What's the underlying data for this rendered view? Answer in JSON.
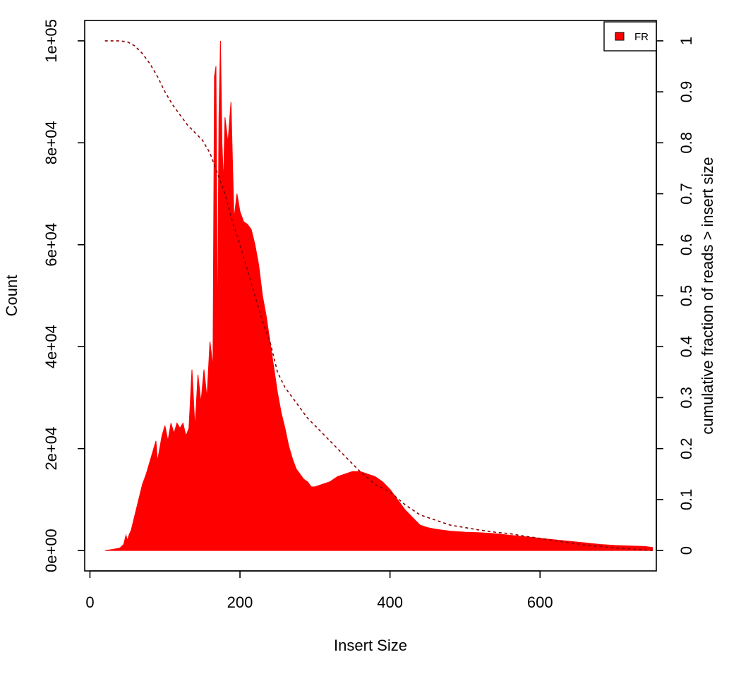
{
  "chart_data": {
    "type": "area",
    "title": "",
    "xlabel": "Insert Size",
    "ylabel": "Count",
    "y2label": "cumulative fraction of reads > insert size",
    "xlim": [
      -7,
      755
    ],
    "ylim": [
      -4000,
      104000
    ],
    "y2lim": [
      -0.04,
      1.04
    ],
    "x_ticks": [
      0,
      200,
      400,
      600
    ],
    "x_tick_labels": [
      "0",
      "200",
      "400",
      "600"
    ],
    "y_ticks": [
      0,
      20000,
      40000,
      60000,
      80000,
      100000
    ],
    "y_tick_labels": [
      "0e+00",
      "2e+04",
      "4e+04",
      "6e+04",
      "8e+04",
      "1e+05"
    ],
    "y2_ticks": [
      0,
      0.1,
      0.2,
      0.3,
      0.4,
      0.5,
      0.6,
      0.7,
      0.8,
      0.9,
      1
    ],
    "y2_tick_labels": [
      "0",
      "0.1",
      "0.2",
      "0.3",
      "0.4",
      "0.5",
      "0.6",
      "0.7",
      "0.8",
      "0.9",
      "1"
    ],
    "grid": false,
    "legend": {
      "position": "top-right",
      "entries": [
        "FR"
      ]
    },
    "colors": {
      "histogram": "#ff0000",
      "cumulative": "#8b0000"
    },
    "series": [
      {
        "name": "FR",
        "kind": "histogram",
        "x": [
          20,
          30,
          40,
          45,
          48,
          50,
          52,
          55,
          60,
          65,
          70,
          75,
          80,
          85,
          88,
          90,
          93,
          96,
          100,
          104,
          108,
          112,
          116,
          120,
          124,
          128,
          132,
          136,
          140,
          144,
          148,
          152,
          156,
          160,
          164,
          166,
          168,
          170,
          172,
          174,
          176,
          178,
          180,
          184,
          188,
          192,
          196,
          200,
          205,
          210,
          215,
          220,
          225,
          230,
          235,
          240,
          245,
          250,
          255,
          260,
          265,
          270,
          275,
          280,
          285,
          290,
          295,
          300,
          310,
          320,
          330,
          340,
          350,
          360,
          370,
          380,
          390,
          400,
          410,
          420,
          430,
          440,
          450,
          460,
          470,
          480,
          490,
          500,
          520,
          540,
          560,
          580,
          600,
          620,
          640,
          660,
          680,
          700,
          720,
          740,
          750
        ],
        "y": [
          0,
          200,
          500,
          1200,
          3000,
          2000,
          3000,
          4000,
          7000,
          10000,
          13000,
          15000,
          17500,
          20000,
          21500,
          17500,
          20000,
          22500,
          24500,
          21500,
          25000,
          23000,
          25000,
          24000,
          25000,
          22500,
          24000,
          35500,
          24000,
          34500,
          29000,
          35500,
          30000,
          41000,
          36000,
          93000,
          95000,
          40000,
          85000,
          100000,
          80000,
          72000,
          85000,
          80000,
          88000,
          65000,
          70000,
          66500,
          64500,
          64000,
          63000,
          60000,
          56000,
          50000,
          46000,
          41000,
          36000,
          31000,
          27000,
          24000,
          20500,
          18000,
          16000,
          15000,
          14000,
          13500,
          12500,
          12500,
          13000,
          13500,
          14500,
          15000,
          15500,
          15500,
          15000,
          14500,
          13500,
          12000,
          10000,
          8000,
          6500,
          5000,
          4500,
          4200,
          4000,
          3800,
          3700,
          3600,
          3500,
          3300,
          3000,
          2700,
          2400,
          2100,
          1800,
          1500,
          1200,
          1000,
          900,
          800,
          600
        ]
      },
      {
        "name": "cumulative",
        "kind": "line",
        "style": "dashed",
        "x": [
          20,
          30,
          40,
          50,
          60,
          70,
          80,
          90,
          100,
          110,
          120,
          130,
          140,
          150,
          160,
          170,
          180,
          190,
          200,
          210,
          220,
          230,
          240,
          250,
          260,
          270,
          280,
          290,
          300,
          320,
          340,
          360,
          380,
          400,
          420,
          440,
          460,
          480,
          500,
          520,
          540,
          560,
          580,
          600,
          620,
          640,
          660,
          680,
          700,
          720,
          740,
          750
        ],
        "y": [
          1.0,
          1.0,
          1.0,
          0.998,
          0.99,
          0.975,
          0.955,
          0.93,
          0.9,
          0.875,
          0.855,
          0.835,
          0.82,
          0.805,
          0.78,
          0.74,
          0.7,
          0.645,
          0.6,
          0.55,
          0.5,
          0.45,
          0.41,
          0.35,
          0.32,
          0.3,
          0.28,
          0.26,
          0.245,
          0.215,
          0.185,
          0.155,
          0.13,
          0.115,
          0.09,
          0.07,
          0.06,
          0.05,
          0.045,
          0.04,
          0.036,
          0.033,
          0.028,
          0.024,
          0.019,
          0.015,
          0.011,
          0.008,
          0.005,
          0.003,
          0.001,
          0.0
        ]
      }
    ]
  }
}
